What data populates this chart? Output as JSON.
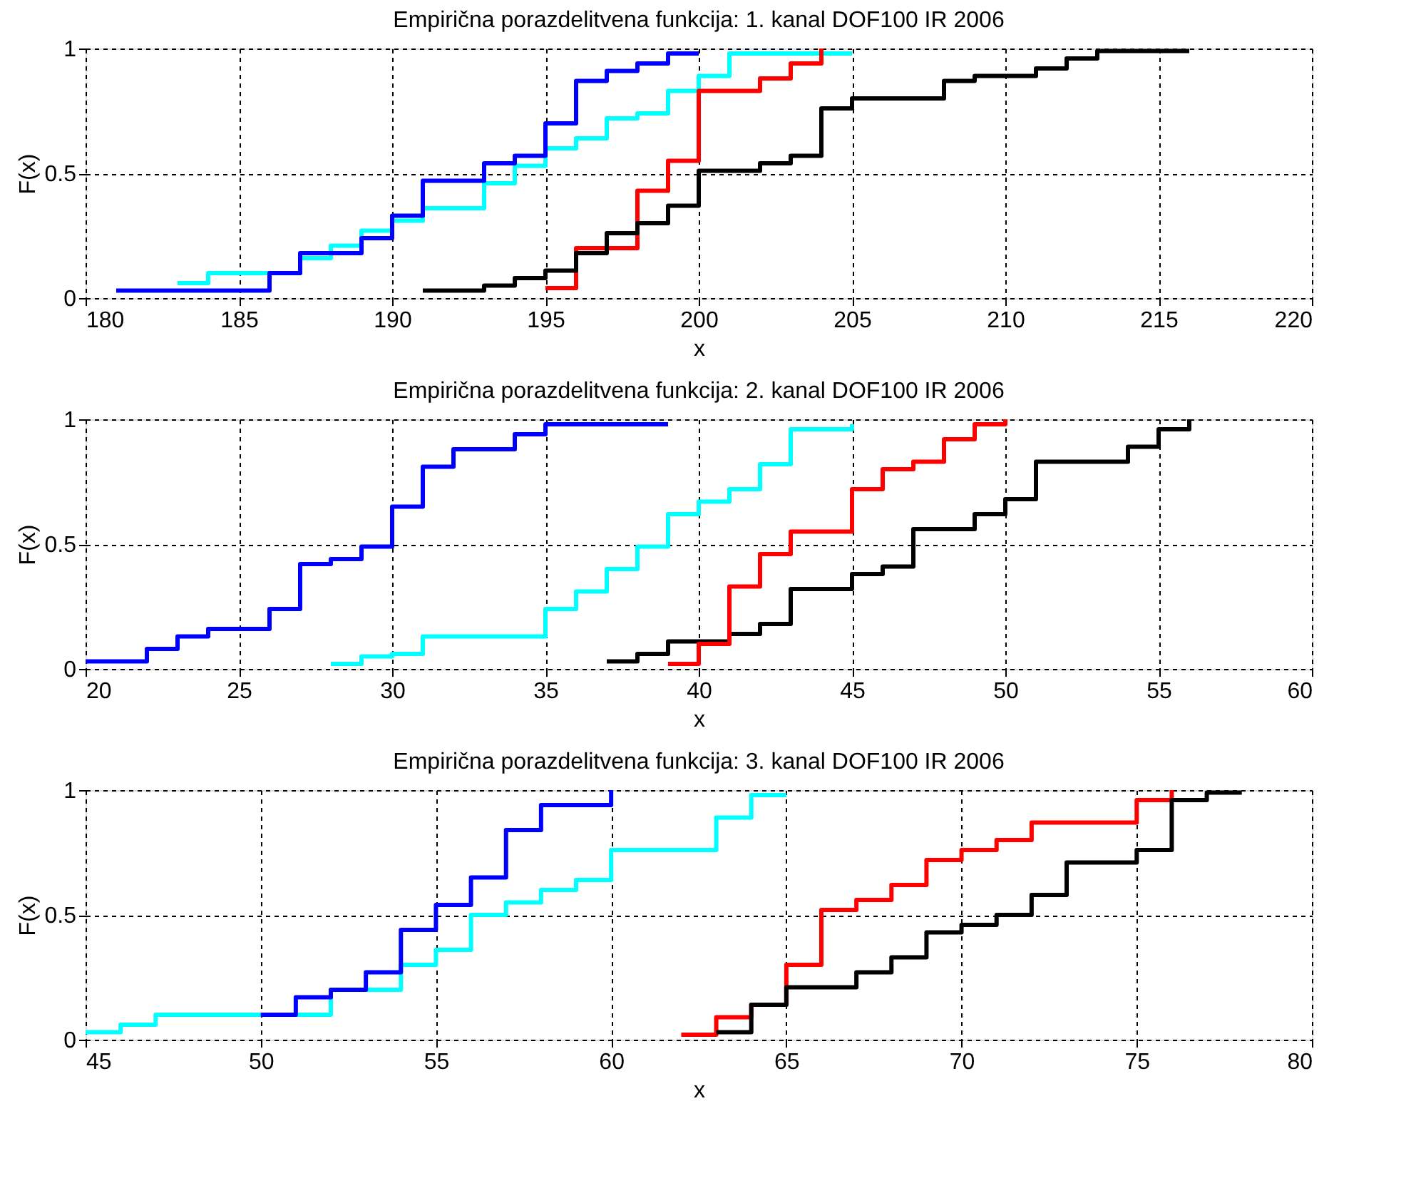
{
  "chart_data": [
    {
      "type": "step",
      "title": "Empirična porazdelitvena funkcija: 1. kanal DOF100 IR 2006",
      "xlabel": "x",
      "ylabel": "F(x)",
      "xlim": [
        180,
        220
      ],
      "xticks": [
        180,
        185,
        190,
        195,
        200,
        205,
        210,
        215,
        220
      ],
      "ylim": [
        0,
        1
      ],
      "yticks": [
        0,
        0.5,
        1
      ],
      "grid": true,
      "series": [
        {
          "color": "#00ffff",
          "x": [
            183,
            184,
            186,
            187,
            188,
            189,
            190,
            191,
            193,
            194,
            195,
            196,
            197,
            198,
            199,
            200,
            201,
            205
          ],
          "values": [
            0.06,
            0.1,
            0.1,
            0.16,
            0.21,
            0.27,
            0.31,
            0.36,
            0.46,
            0.53,
            0.6,
            0.64,
            0.72,
            0.74,
            0.83,
            0.89,
            0.98,
            0.98
          ]
        },
        {
          "color": "#0000ff",
          "x": [
            181,
            186,
            187,
            189,
            190,
            191,
            193,
            194,
            195,
            196,
            197,
            198,
            199,
            200
          ],
          "values": [
            0.03,
            0.1,
            0.18,
            0.24,
            0.33,
            0.47,
            0.54,
            0.57,
            0.7,
            0.87,
            0.91,
            0.94,
            0.98,
            0.98
          ]
        },
        {
          "color": "#ff0000",
          "x": [
            195,
            196,
            198,
            199,
            200,
            202,
            203,
            204
          ],
          "values": [
            0.04,
            0.2,
            0.43,
            0.55,
            0.83,
            0.88,
            0.94,
            1.0
          ]
        },
        {
          "color": "#000000",
          "x": [
            191,
            193,
            194,
            195,
            196,
            197,
            198,
            199,
            200,
            202,
            203,
            204,
            205,
            208,
            209,
            211,
            212,
            213,
            216
          ],
          "values": [
            0.03,
            0.05,
            0.08,
            0.11,
            0.18,
            0.26,
            0.3,
            0.37,
            0.51,
            0.54,
            0.57,
            0.76,
            0.8,
            0.87,
            0.89,
            0.92,
            0.96,
            0.99,
            0.99
          ]
        }
      ]
    },
    {
      "type": "step",
      "title": "Empirična porazdelitvena funkcija: 2. kanal DOF100 IR 2006",
      "xlabel": "x",
      "ylabel": "F(x)",
      "xlim": [
        20,
        60
      ],
      "xticks": [
        20,
        25,
        30,
        35,
        40,
        45,
        50,
        55,
        60
      ],
      "ylim": [
        0,
        1
      ],
      "yticks": [
        0,
        0.5,
        1
      ],
      "grid": true,
      "series": [
        {
          "color": "#0000ff",
          "x": [
            20,
            22,
            23,
            24,
            26,
            27,
            28,
            29,
            30,
            31,
            32,
            34,
            35,
            39
          ],
          "values": [
            0.03,
            0.08,
            0.13,
            0.16,
            0.24,
            0.42,
            0.44,
            0.49,
            0.65,
            0.81,
            0.88,
            0.94,
            0.98,
            0.98
          ]
        },
        {
          "color": "#00ffff",
          "x": [
            28,
            29,
            30,
            31,
            35,
            36,
            37,
            38,
            39,
            40,
            41,
            42,
            43,
            45
          ],
          "values": [
            0.02,
            0.05,
            0.06,
            0.13,
            0.24,
            0.31,
            0.4,
            0.49,
            0.62,
            0.67,
            0.72,
            0.82,
            0.96,
            0.98
          ]
        },
        {
          "color": "#000000",
          "x": [
            37,
            38,
            39,
            41,
            42,
            43,
            45,
            46,
            47,
            49,
            50,
            51,
            54,
            55,
            56
          ],
          "values": [
            0.03,
            0.06,
            0.11,
            0.14,
            0.18,
            0.32,
            0.38,
            0.41,
            0.56,
            0.62,
            0.68,
            0.83,
            0.89,
            0.96,
            1.0
          ]
        },
        {
          "color": "#ff0000",
          "x": [
            39,
            40,
            41,
            42,
            43,
            45,
            46,
            47,
            48,
            49,
            50
          ],
          "values": [
            0.02,
            0.1,
            0.33,
            0.46,
            0.55,
            0.72,
            0.8,
            0.83,
            0.92,
            0.98,
            1.0
          ]
        }
      ]
    },
    {
      "type": "step",
      "title": "Empirična porazdelitvena funkcija: 3. kanal DOF100 IR 2006",
      "xlabel": "x",
      "ylabel": "F(x)",
      "xlim": [
        45,
        80
      ],
      "xticks": [
        45,
        50,
        55,
        60,
        65,
        70,
        75,
        80
      ],
      "ylim": [
        0,
        1
      ],
      "yticks": [
        0,
        0.5,
        1
      ],
      "grid": true,
      "series": [
        {
          "color": "#00ffff",
          "x": [
            45,
            46,
            47,
            52,
            54,
            55,
            56,
            57,
            58,
            59,
            60,
            63,
            64,
            65
          ],
          "values": [
            0.03,
            0.06,
            0.1,
            0.2,
            0.3,
            0.36,
            0.5,
            0.55,
            0.6,
            0.64,
            0.76,
            0.89,
            0.98,
            0.98
          ]
        },
        {
          "color": "#0000ff",
          "x": [
            50,
            51,
            52,
            53,
            54,
            55,
            56,
            57,
            58,
            60
          ],
          "values": [
            0.1,
            0.17,
            0.2,
            0.27,
            0.44,
            0.54,
            0.65,
            0.84,
            0.94,
            1.0
          ]
        },
        {
          "color": "#ff0000",
          "x": [
            62,
            63,
            64,
            65,
            66,
            67,
            68,
            69,
            70,
            71,
            72,
            75,
            76
          ],
          "values": [
            0.02,
            0.09,
            0.14,
            0.3,
            0.52,
            0.56,
            0.62,
            0.72,
            0.76,
            0.8,
            0.87,
            0.96,
            1.0
          ]
        },
        {
          "color": "#000000",
          "x": [
            63,
            64,
            65,
            67,
            68,
            69,
            70,
            71,
            72,
            73,
            75,
            76,
            77,
            78
          ],
          "values": [
            0.03,
            0.14,
            0.21,
            0.27,
            0.33,
            0.43,
            0.46,
            0.5,
            0.58,
            0.71,
            0.76,
            0.96,
            0.99,
            0.99
          ]
        }
      ]
    }
  ]
}
